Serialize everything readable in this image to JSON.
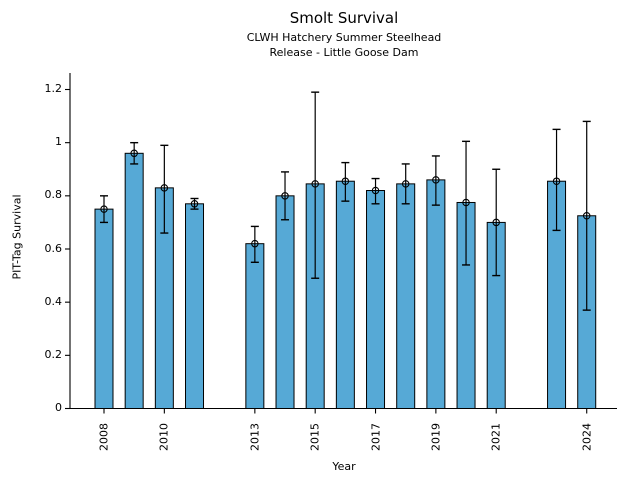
{
  "header": {
    "title": "Smolt Survival",
    "subtitle1": "CLWH Hatchery Summer Steelhead",
    "subtitle2": "Release - Little Goose Dam"
  },
  "chart_data": {
    "type": "bar",
    "title": "Smolt Survival",
    "subtitle": [
      "CLWH Hatchery Summer Steelhead",
      "Release - Little Goose Dam"
    ],
    "xlabel": "Year",
    "ylabel": "PIT-Tag Survival",
    "ylim": [
      0,
      1.26
    ],
    "grid": "off",
    "legend": "none",
    "error_bars": "95% CI with caps and open-circle markers",
    "yticks": [
      0,
      0.2,
      0.4,
      0.6,
      0.8,
      1,
      1.2
    ],
    "ytick_labels": [
      "0",
      "0.2",
      "0.4",
      "0.6",
      "0.8",
      "1",
      "1.2"
    ],
    "xtick_years": [
      2008,
      2010,
      2013,
      2015,
      2017,
      2019,
      2021,
      2024
    ],
    "missing_years": [
      2012,
      2022
    ],
    "bar_color": "#56A9D6",
    "bar_edge_color": "#000000",
    "errorbar_color": "#000000",
    "series": [
      {
        "name": "PIT-Tag Survival",
        "points": [
          {
            "year": 2008,
            "value": 0.75,
            "ci_low": 0.7,
            "ci_high": 0.8
          },
          {
            "year": 2009,
            "value": 0.96,
            "ci_low": 0.92,
            "ci_high": 1.0
          },
          {
            "year": 2010,
            "value": 0.83,
            "ci_low": 0.66,
            "ci_high": 0.99
          },
          {
            "year": 2011,
            "value": 0.77,
            "ci_low": 0.75,
            "ci_high": 0.79
          },
          {
            "year": 2013,
            "value": 0.62,
            "ci_low": 0.55,
            "ci_high": 0.685
          },
          {
            "year": 2014,
            "value": 0.8,
            "ci_low": 0.71,
            "ci_high": 0.89
          },
          {
            "year": 2015,
            "value": 0.845,
            "ci_low": 0.49,
            "ci_high": 1.19
          },
          {
            "year": 2016,
            "value": 0.855,
            "ci_low": 0.78,
            "ci_high": 0.925
          },
          {
            "year": 2017,
            "value": 0.82,
            "ci_low": 0.77,
            "ci_high": 0.865
          },
          {
            "year": 2018,
            "value": 0.845,
            "ci_low": 0.77,
            "ci_high": 0.92
          },
          {
            "year": 2019,
            "value": 0.86,
            "ci_low": 0.765,
            "ci_high": 0.95
          },
          {
            "year": 2020,
            "value": 0.775,
            "ci_low": 0.54,
            "ci_high": 1.005
          },
          {
            "year": 2021,
            "value": 0.7,
            "ci_low": 0.5,
            "ci_high": 0.9
          },
          {
            "year": 2023,
            "value": 0.855,
            "ci_low": 0.67,
            "ci_high": 1.05
          },
          {
            "year": 2024,
            "value": 0.725,
            "ci_low": 0.37,
            "ci_high": 1.08
          }
        ]
      }
    ]
  }
}
